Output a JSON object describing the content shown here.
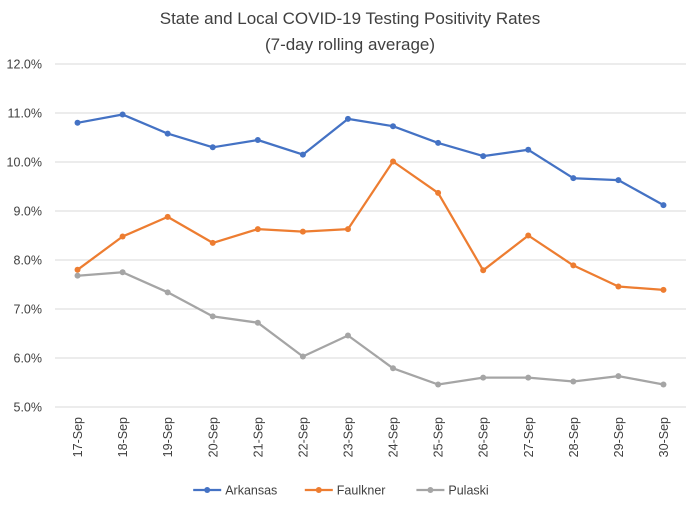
{
  "chart_data": {
    "type": "line",
    "title": "State and Local COVID-19 Testing Positivity Rates",
    "subtitle": "(7-day rolling average)",
    "xlabel": "",
    "ylabel": "",
    "categories": [
      "17-Sep",
      "18-Sep",
      "19-Sep",
      "20-Sep",
      "21-Sep",
      "22-Sep",
      "23-Sep",
      "24-Sep",
      "25-Sep",
      "26-Sep",
      "27-Sep",
      "28-Sep",
      "29-Sep",
      "30-Sep"
    ],
    "ylim": [
      5.0,
      12.0
    ],
    "yticks": [
      {
        "value": 5.0,
        "label": "5.0%"
      },
      {
        "value": 6.0,
        "label": "6.0%"
      },
      {
        "value": 7.0,
        "label": "7.0%"
      },
      {
        "value": 8.0,
        "label": "8.0%"
      },
      {
        "value": 9.0,
        "label": "9.0%"
      },
      {
        "value": 10.0,
        "label": "10.0%"
      },
      {
        "value": 11.0,
        "label": "11.0%"
      },
      {
        "value": 12.0,
        "label": "12.0%"
      }
    ],
    "grid": true,
    "legend_position": "bottom",
    "series": [
      {
        "name": "Arkansas",
        "color": "#4472C4",
        "values": [
          10.8,
          10.97,
          10.58,
          10.3,
          10.45,
          10.15,
          10.88,
          10.73,
          10.39,
          10.12,
          10.25,
          9.67,
          9.63,
          9.12
        ]
      },
      {
        "name": "Faulkner",
        "color": "#ED7D31",
        "values": [
          7.8,
          8.48,
          8.88,
          8.35,
          8.63,
          8.58,
          8.63,
          10.01,
          9.37,
          7.79,
          8.5,
          7.89,
          7.46,
          7.39
        ]
      },
      {
        "name": "Pulaski",
        "color": "#A5A5A5",
        "values": [
          7.68,
          7.75,
          7.34,
          6.85,
          6.72,
          6.03,
          6.46,
          5.79,
          5.46,
          5.6,
          5.6,
          5.52,
          5.63,
          5.46
        ]
      }
    ]
  },
  "colors": {
    "gridline": "#D9D9D9",
    "axis_text": "#404040"
  }
}
